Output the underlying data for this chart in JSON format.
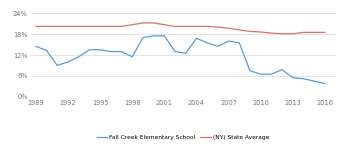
{
  "school_years": [
    1989,
    1990,
    1991,
    1992,
    1993,
    1994,
    1995,
    1996,
    1997,
    1998,
    1999,
    2000,
    2001,
    2002,
    2003,
    2004,
    2005,
    2006,
    2007,
    2008,
    2009,
    2010,
    2011,
    2012,
    2013,
    2014,
    2016
  ],
  "school_values": [
    0.145,
    0.133,
    0.09,
    0.1,
    0.115,
    0.135,
    0.135,
    0.13,
    0.13,
    0.115,
    0.17,
    0.175,
    0.175,
    0.13,
    0.125,
    0.168,
    0.155,
    0.145,
    0.16,
    0.155,
    0.075,
    0.065,
    0.065,
    0.078,
    0.055,
    0.052,
    0.038
  ],
  "state_years": [
    1989,
    1990,
    1991,
    1992,
    1993,
    1994,
    1995,
    1996,
    1997,
    1998,
    1999,
    2000,
    2001,
    2002,
    2003,
    2004,
    2005,
    2006,
    2007,
    2008,
    2009,
    2010,
    2011,
    2012,
    2013,
    2014,
    2016
  ],
  "state_values": [
    0.202,
    0.202,
    0.202,
    0.202,
    0.202,
    0.202,
    0.202,
    0.202,
    0.202,
    0.207,
    0.212,
    0.212,
    0.207,
    0.202,
    0.202,
    0.202,
    0.202,
    0.2,
    0.197,
    0.192,
    0.188,
    0.186,
    0.183,
    0.181,
    0.181,
    0.185,
    0.185
  ],
  "school_color": "#5b9bd5",
  "state_color": "#d9726a",
  "school_label": "Fall Creek Elementary School",
  "state_label": "(NY) State Average",
  "xticks": [
    1989,
    1992,
    1995,
    1998,
    2001,
    2004,
    2007,
    2010,
    2013,
    2016
  ],
  "yticks": [
    0.0,
    0.06,
    0.12,
    0.18,
    0.24
  ],
  "ylim": [
    0.0,
    0.265
  ],
  "xlim": [
    1988.5,
    2017.0
  ],
  "background_color": "#ffffff",
  "grid_color": "#d8d8d8"
}
